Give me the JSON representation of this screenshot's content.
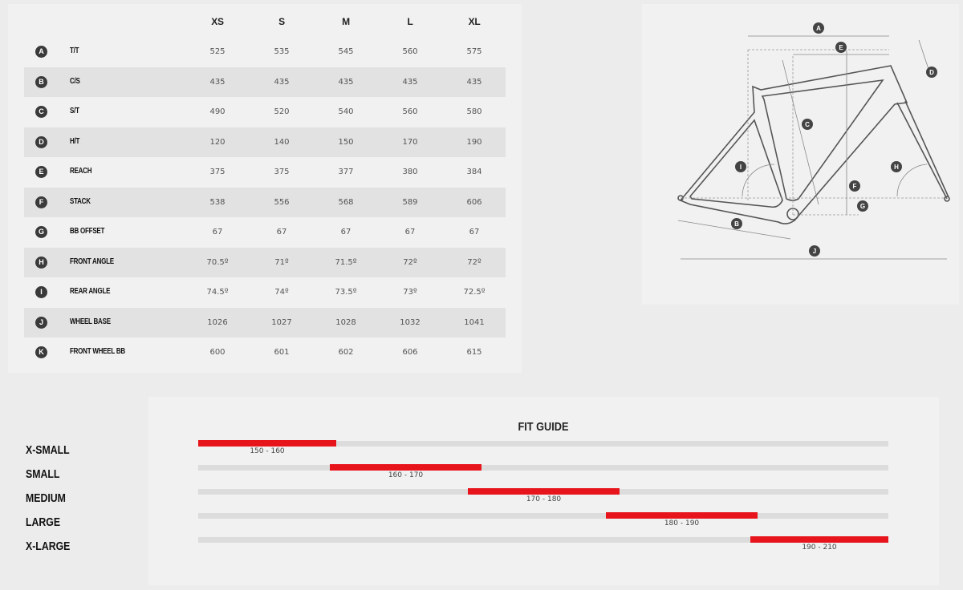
{
  "geometry": {
    "columns": [
      "XS",
      "S",
      "M",
      "L",
      "XL"
    ],
    "rows": [
      {
        "key": "A",
        "label": "T/T",
        "values": [
          "525",
          "535",
          "545",
          "560",
          "575"
        ]
      },
      {
        "key": "B",
        "label": "C/S",
        "values": [
          "435",
          "435",
          "435",
          "435",
          "435"
        ]
      },
      {
        "key": "C",
        "label": "S/T",
        "values": [
          "490",
          "520",
          "540",
          "560",
          "580"
        ]
      },
      {
        "key": "D",
        "label": "H/T",
        "values": [
          "120",
          "140",
          "150",
          "170",
          "190"
        ]
      },
      {
        "key": "E",
        "label": "REACH",
        "values": [
          "375",
          "375",
          "377",
          "380",
          "384"
        ]
      },
      {
        "key": "F",
        "label": "STACK",
        "values": [
          "538",
          "556",
          "568",
          "589",
          "606"
        ]
      },
      {
        "key": "G",
        "label": "BB OFFSET",
        "values": [
          "67",
          "67",
          "67",
          "67",
          "67"
        ]
      },
      {
        "key": "H",
        "label": "FRONT ANGLE",
        "values": [
          "70.5º",
          "71º",
          "71.5º",
          "72º",
          "72º"
        ]
      },
      {
        "key": "I",
        "label": "REAR ANGLE",
        "values": [
          "74.5º",
          "74º",
          "73.5º",
          "73º",
          "72.5º"
        ]
      },
      {
        "key": "J",
        "label": "WHEEL BASE",
        "values": [
          "1026",
          "1027",
          "1028",
          "1032",
          "1041"
        ]
      },
      {
        "key": "K",
        "label": "FRONT WHEEL BB",
        "values": [
          "600",
          "601",
          "602",
          "606",
          "615"
        ]
      }
    ]
  },
  "diagram": {
    "markers": [
      "A",
      "B",
      "C",
      "D",
      "E",
      "F",
      "G",
      "H",
      "I",
      "J"
    ]
  },
  "fit_guide": {
    "title": "FIT GUIDE",
    "accent": "#e8141c",
    "sizes": [
      {
        "label": "X-SMALL",
        "range": "150 - 160"
      },
      {
        "label": "SMALL",
        "range": "160 - 170"
      },
      {
        "label": "MEDIUM",
        "range": "170 - 180"
      },
      {
        "label": "LARGE",
        "range": "180 - 190"
      },
      {
        "label": "X-LARGE",
        "range": "190 - 210"
      }
    ]
  }
}
